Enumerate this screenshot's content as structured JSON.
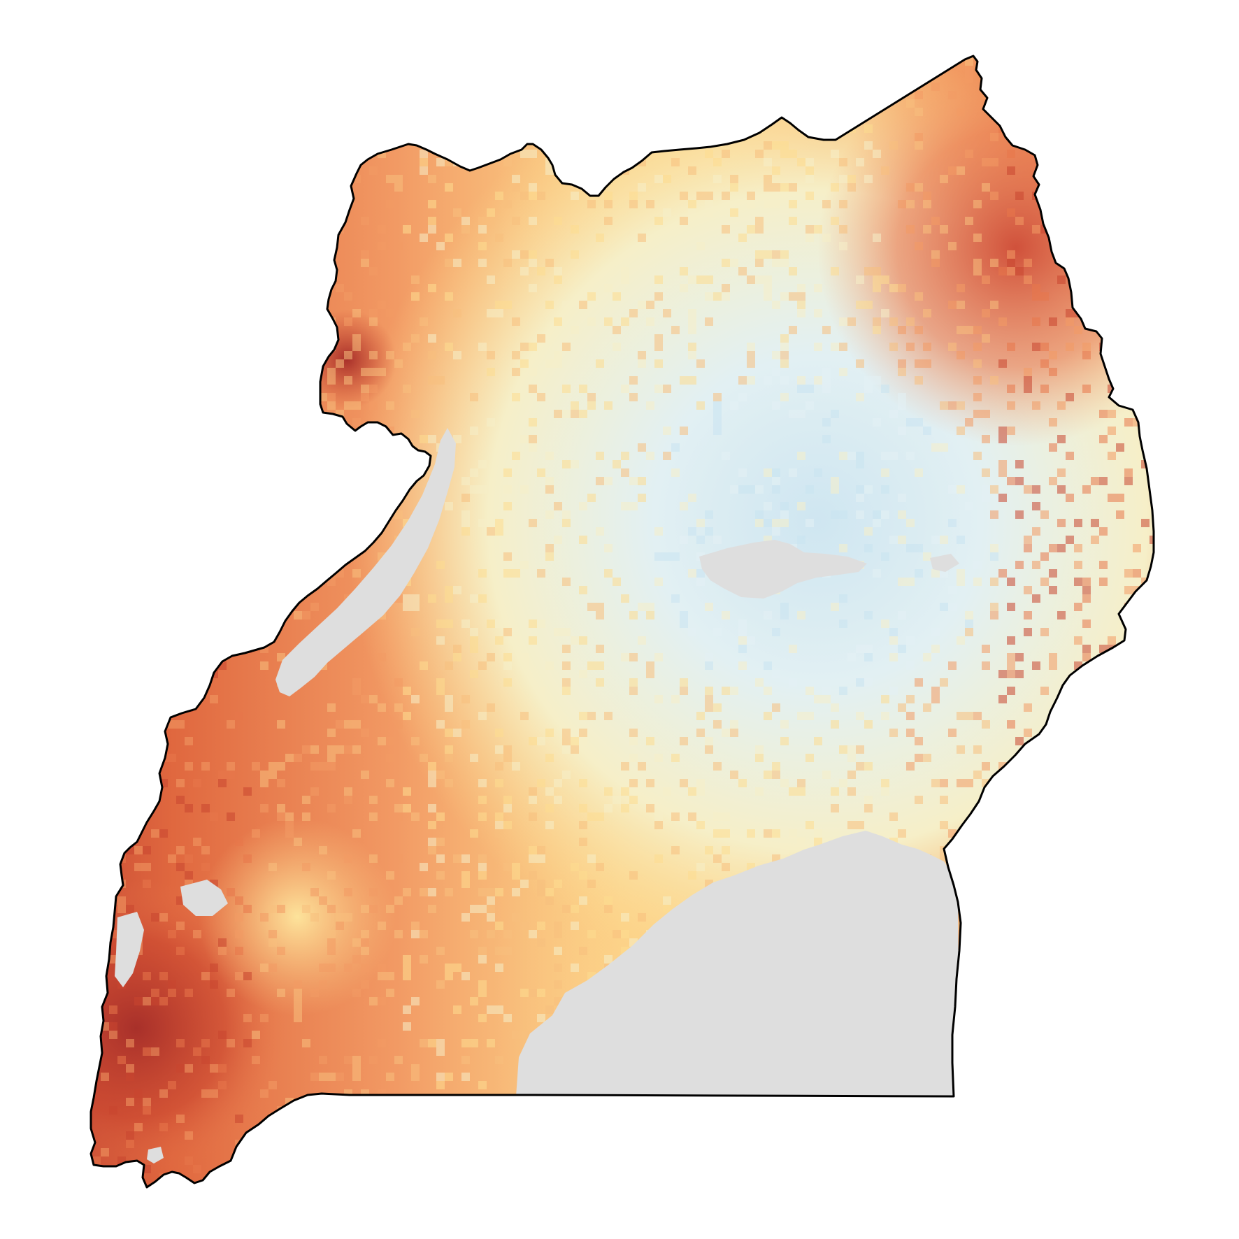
{
  "map": {
    "kind": "choropleth raster",
    "legend": null,
    "colors": {
      "background": "#ffffff",
      "no_data": "#dedede",
      "border": "#000000",
      "scale": [
        "#a8302a",
        "#c9452f",
        "#e7764b",
        "#f29a64",
        "#f8c07d",
        "#fddc8f",
        "#f6efc8",
        "#e3f0f4",
        "#c9e3f0"
      ]
    },
    "regions": [
      {
        "name": "high-values-west",
        "color_level": "#c9452f"
      },
      {
        "name": "high-values-northeast",
        "color_level": "#d9553a"
      },
      {
        "name": "low-values-center",
        "color_level": "#ddeef5"
      },
      {
        "name": "no-data-lake-south",
        "color_level": "#dedede"
      },
      {
        "name": "no-data-lake-west",
        "color_level": "#dedede"
      }
    ]
  }
}
